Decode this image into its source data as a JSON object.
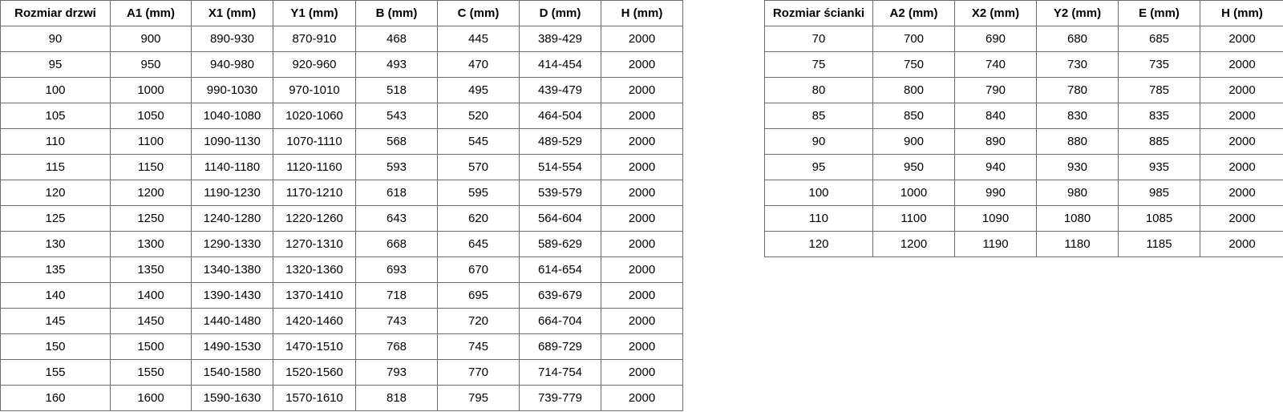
{
  "door_table": {
    "headers": [
      "Rozmiar drzwi",
      "A1 (mm)",
      "X1 (mm)",
      "Y1 (mm)",
      "B (mm)",
      "C (mm)",
      "D (mm)",
      "H (mm)"
    ],
    "rows": [
      [
        "90",
        "900",
        "890-930",
        "870-910",
        "468",
        "445",
        "389-429",
        "2000"
      ],
      [
        "95",
        "950",
        "940-980",
        "920-960",
        "493",
        "470",
        "414-454",
        "2000"
      ],
      [
        "100",
        "1000",
        "990-1030",
        "970-1010",
        "518",
        "495",
        "439-479",
        "2000"
      ],
      [
        "105",
        "1050",
        "1040-1080",
        "1020-1060",
        "543",
        "520",
        "464-504",
        "2000"
      ],
      [
        "110",
        "1100",
        "1090-1130",
        "1070-1110",
        "568",
        "545",
        "489-529",
        "2000"
      ],
      [
        "115",
        "1150",
        "1140-1180",
        "1120-1160",
        "593",
        "570",
        "514-554",
        "2000"
      ],
      [
        "120",
        "1200",
        "1190-1230",
        "1170-1210",
        "618",
        "595",
        "539-579",
        "2000"
      ],
      [
        "125",
        "1250",
        "1240-1280",
        "1220-1260",
        "643",
        "620",
        "564-604",
        "2000"
      ],
      [
        "130",
        "1300",
        "1290-1330",
        "1270-1310",
        "668",
        "645",
        "589-629",
        "2000"
      ],
      [
        "135",
        "1350",
        "1340-1380",
        "1320-1360",
        "693",
        "670",
        "614-654",
        "2000"
      ],
      [
        "140",
        "1400",
        "1390-1430",
        "1370-1410",
        "718",
        "695",
        "639-679",
        "2000"
      ],
      [
        "145",
        "1450",
        "1440-1480",
        "1420-1460",
        "743",
        "720",
        "664-704",
        "2000"
      ],
      [
        "150",
        "1500",
        "1490-1530",
        "1470-1510",
        "768",
        "745",
        "689-729",
        "2000"
      ],
      [
        "155",
        "1550",
        "1540-1580",
        "1520-1560",
        "793",
        "770",
        "714-754",
        "2000"
      ],
      [
        "160",
        "1600",
        "1590-1630",
        "1570-1610",
        "818",
        "795",
        "739-779",
        "2000"
      ]
    ]
  },
  "wall_table": {
    "headers": [
      "Rozmiar ścianki",
      "A2 (mm)",
      "X2 (mm)",
      "Y2 (mm)",
      "E (mm)",
      "H (mm)"
    ],
    "rows": [
      [
        "70",
        "700",
        "690",
        "680",
        "685",
        "2000"
      ],
      [
        "75",
        "750",
        "740",
        "730",
        "735",
        "2000"
      ],
      [
        "80",
        "800",
        "790",
        "780",
        "785",
        "2000"
      ],
      [
        "85",
        "850",
        "840",
        "830",
        "835",
        "2000"
      ],
      [
        "90",
        "900",
        "890",
        "880",
        "885",
        "2000"
      ],
      [
        "95",
        "950",
        "940",
        "930",
        "935",
        "2000"
      ],
      [
        "100",
        "1000",
        "990",
        "980",
        "985",
        "2000"
      ],
      [
        "110",
        "1100",
        "1090",
        "1080",
        "1085",
        "2000"
      ],
      [
        "120",
        "1200",
        "1190",
        "1180",
        "1185",
        "2000"
      ]
    ]
  }
}
